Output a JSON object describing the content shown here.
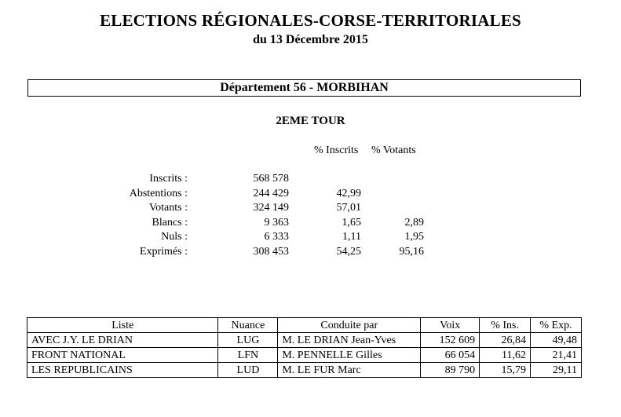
{
  "header": {
    "title": "ELECTIONS RÉGIONALES-CORSE-TERRITORIALES",
    "subtitle": "du 13 Décembre 2015"
  },
  "department": "Département 56 - MORBIHAN",
  "tour": "2EME TOUR",
  "stats_headers": {
    "pct_inscrits": "% Inscrits",
    "pct_votants": "% Votants"
  },
  "stats": [
    {
      "label": "Inscrits :",
      "value": "568 578",
      "pct_inscrits": "",
      "pct_votants": ""
    },
    {
      "label": "Abstentions :",
      "value": "244 429",
      "pct_inscrits": "42,99",
      "pct_votants": ""
    },
    {
      "label": "Votants :",
      "value": "324 149",
      "pct_inscrits": "57,01",
      "pct_votants": ""
    },
    {
      "label": "Blancs :",
      "value": "9 363",
      "pct_inscrits": "1,65",
      "pct_votants": "2,89"
    },
    {
      "label": "Nuls :",
      "value": "6 333",
      "pct_inscrits": "1,11",
      "pct_votants": "1,95"
    },
    {
      "label": "Exprimés :",
      "value": "308 453",
      "pct_inscrits": "54,25",
      "pct_votants": "95,16"
    }
  ],
  "results": {
    "columns": [
      "Liste",
      "Nuance",
      "Conduite par",
      "Voix",
      "% Ins.",
      "% Exp."
    ],
    "rows": [
      {
        "liste": "AVEC J.Y. LE DRIAN",
        "nuance": "LUG",
        "conduite": "M. LE DRIAN Jean-Yves",
        "voix": "152 609",
        "pct_ins": "26,84",
        "pct_exp": "49,48"
      },
      {
        "liste": "FRONT NATIONAL",
        "nuance": "LFN",
        "conduite": "M. PENNELLE Gilles",
        "voix": "66 054",
        "pct_ins": "11,62",
        "pct_exp": "21,41"
      },
      {
        "liste": "LES REPUBLICAINS",
        "nuance": "LUD",
        "conduite": "M. LE FUR Marc",
        "voix": "89 790",
        "pct_ins": "15,79",
        "pct_exp": "29,11"
      }
    ]
  }
}
